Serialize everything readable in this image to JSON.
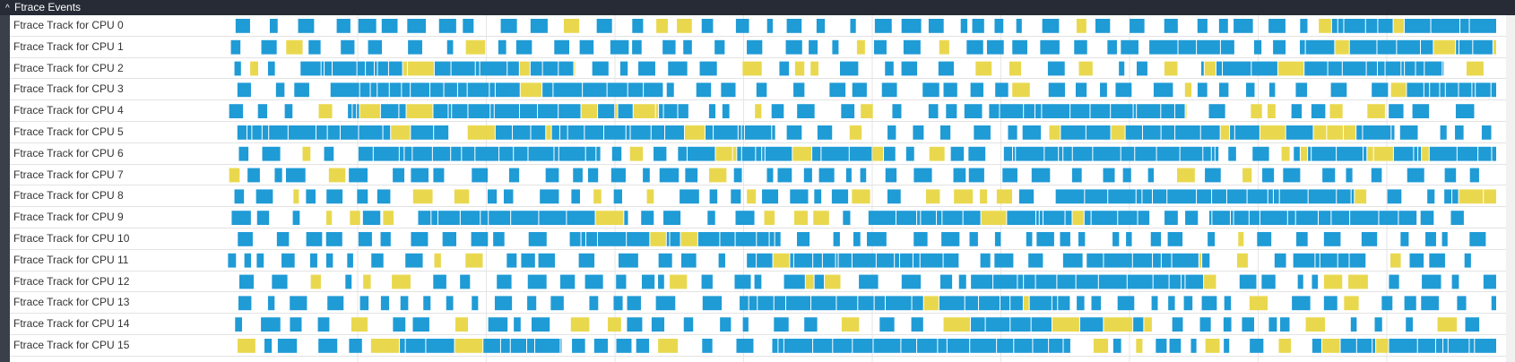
{
  "header": {
    "title": "Ftrace Events"
  },
  "tracks": [
    {
      "label": "Ftrace Track for CPU 0"
    },
    {
      "label": "Ftrace Track for CPU 1"
    },
    {
      "label": "Ftrace Track for CPU 2"
    },
    {
      "label": "Ftrace Track for CPU 3"
    },
    {
      "label": "Ftrace Track for CPU 4"
    },
    {
      "label": "Ftrace Track for CPU 5"
    },
    {
      "label": "Ftrace Track for CPU 6"
    },
    {
      "label": "Ftrace Track for CPU 7"
    },
    {
      "label": "Ftrace Track for CPU 8"
    },
    {
      "label": "Ftrace Track for CPU 9"
    },
    {
      "label": "Ftrace Track for CPU 10"
    },
    {
      "label": "Ftrace Track for CPU 11"
    },
    {
      "label": "Ftrace Track for CPU 12"
    },
    {
      "label": "Ftrace Track for CPU 13"
    },
    {
      "label": "Ftrace Track for CPU 14"
    },
    {
      "label": "Ftrace Track for CPU 15"
    }
  ]
}
